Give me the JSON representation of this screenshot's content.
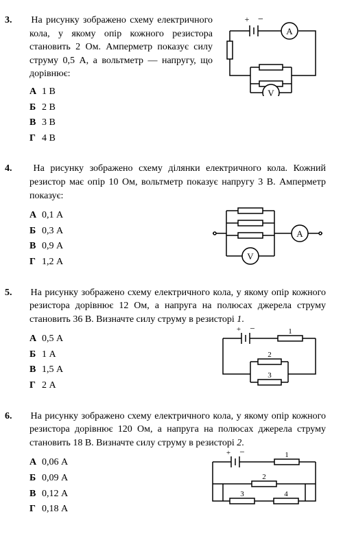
{
  "questions": [
    {
      "num": "3.",
      "text": "На рисунку зображено схему електричного кола, у якому опір кожного резистора становить 2 Ом. Амперметр показує силу струму 0,5 А, а вольтметр — напругу, що дорівнює:",
      "opts": [
        {
          "l": "А",
          "v": "1 В"
        },
        {
          "l": "Б",
          "v": "2 В"
        },
        {
          "l": "В",
          "v": "3 В"
        },
        {
          "l": "Г",
          "v": "4 В"
        }
      ],
      "diag": {
        "stroke": "#000",
        "sw": 1.5,
        "A": "A",
        "V": "V",
        "plus": "+",
        "minus": "−"
      }
    },
    {
      "num": "4.",
      "text": "На рисунку зображено схему ділянки електричного кола. Кожний резистор має опір 10 Ом, вольтметр показує напругу 3 В. Амперметр показує:",
      "opts": [
        {
          "l": "А",
          "v": "0,1 А"
        },
        {
          "l": "Б",
          "v": "0,3 А"
        },
        {
          "l": "В",
          "v": "0,9 А"
        },
        {
          "l": "Г",
          "v": "1,2 А"
        }
      ],
      "diag": {
        "stroke": "#000",
        "sw": 1.5,
        "A": "A",
        "V": "V"
      }
    },
    {
      "num": "5.",
      "text": "На рисунку зображено схему електричного кола, у якому опір кожного резистора дорівнює 12 Ом, а напруга на полюсах джерела струму становить 36 В. Визначте силу струму в резисторі <i>1</i>.",
      "opts": [
        {
          "l": "А",
          "v": "0,5 А"
        },
        {
          "l": "Б",
          "v": "1 А"
        },
        {
          "l": "В",
          "v": "1,5 А"
        },
        {
          "l": "Г",
          "v": "2 А"
        }
      ],
      "diag": {
        "stroke": "#000",
        "sw": 1.5,
        "plus": "+",
        "minus": "−",
        "l1": "1",
        "l2": "2",
        "l3": "3"
      }
    },
    {
      "num": "6.",
      "text": "На рисунку зображено схему електричного кола, у якому опір кожного резистора дорівнює 120 Ом, а напруга на полюсах джерела струму становить 18 В. Визначте силу струму в резисторі <i>2</i>.",
      "opts": [
        {
          "l": "А",
          "v": "0,06 А"
        },
        {
          "l": "Б",
          "v": "0,09 А"
        },
        {
          "l": "В",
          "v": "0,12 А"
        },
        {
          "l": "Г",
          "v": "0,18 А"
        }
      ],
      "diag": {
        "stroke": "#000",
        "sw": 1.5,
        "plus": "+",
        "minus": "−",
        "l1": "1",
        "l2": "2",
        "l3": "3",
        "l4": "4"
      }
    }
  ]
}
